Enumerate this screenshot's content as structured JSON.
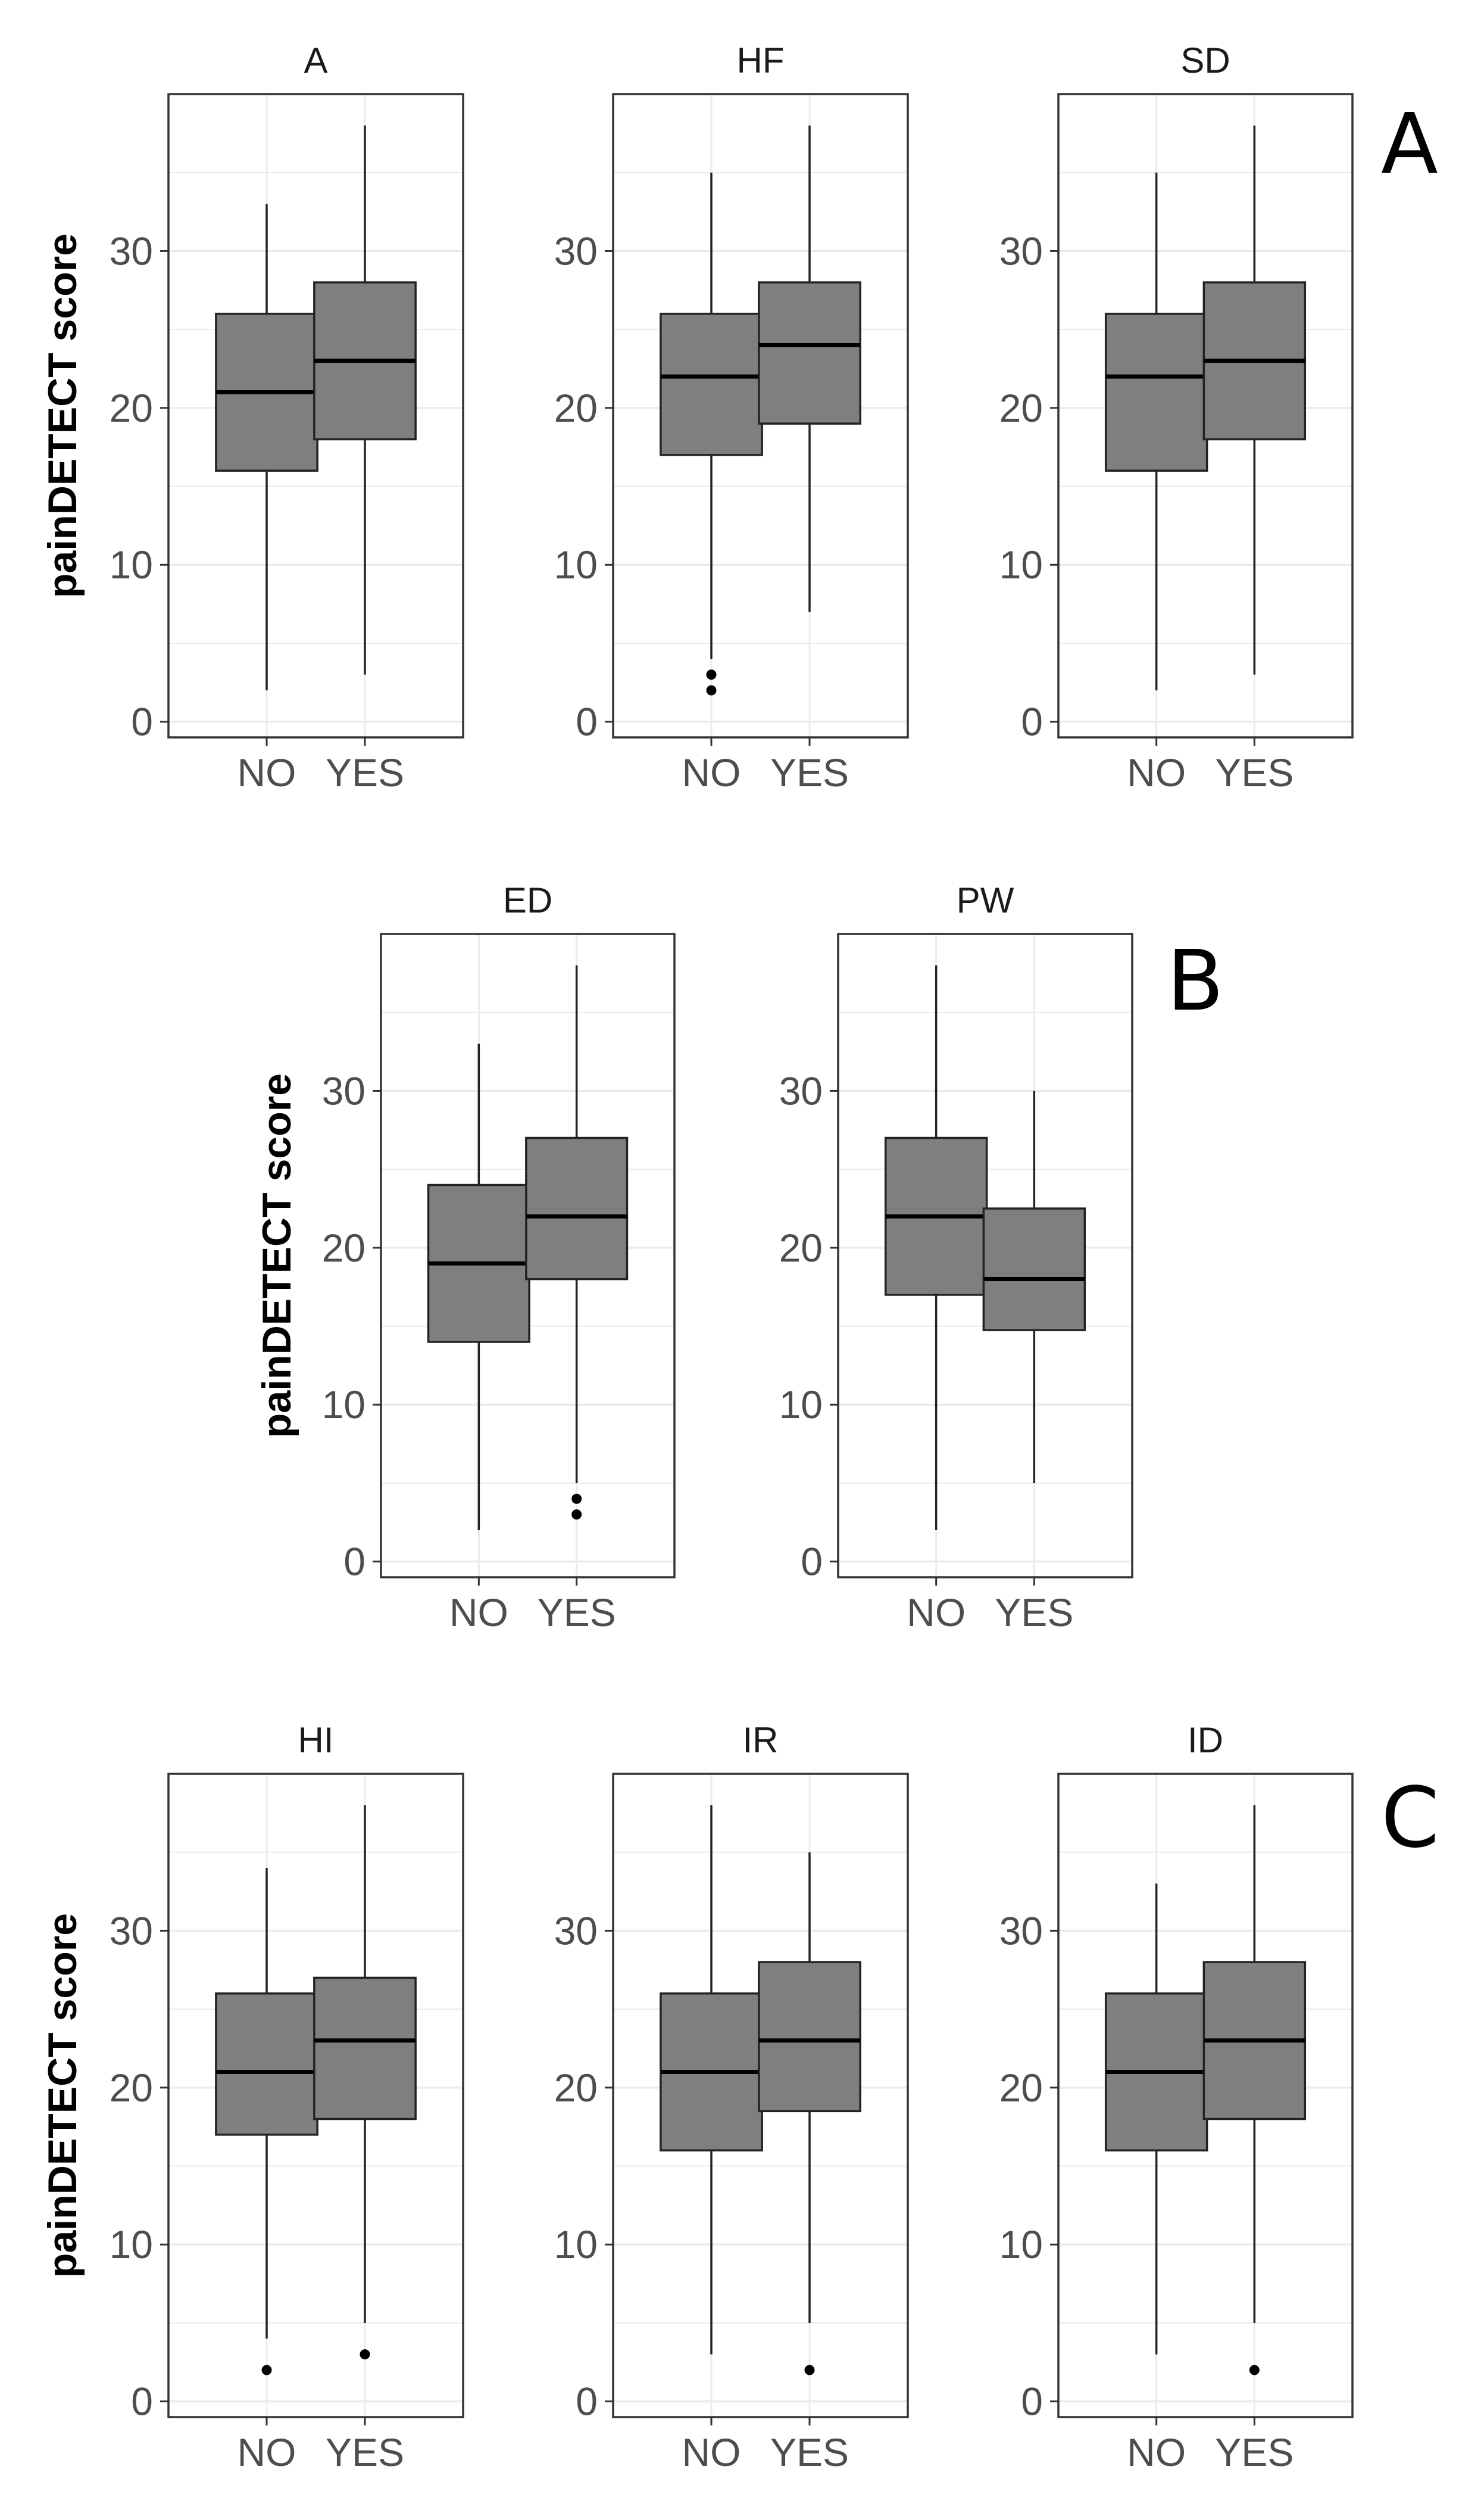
{
  "colors": {
    "box_fill": "#7f7f7f",
    "grid": "#ebebeb",
    "border": "#333333"
  },
  "panel_labels": [
    "A",
    "B",
    "C"
  ],
  "chart_data": [
    {
      "panel": "A",
      "type": "boxplot",
      "ylabel": "painDETECT score",
      "ylim": [
        -1,
        40
      ],
      "yticks": [
        0,
        10,
        20,
        30
      ],
      "categories": [
        "NO",
        "YES"
      ],
      "facets": [
        {
          "title": "A",
          "boxes": [
            {
              "category": "NO",
              "min": 2,
              "q1": 16,
              "median": 21,
              "q3": 26,
              "max": 33,
              "outliers": []
            },
            {
              "category": "YES",
              "min": 3,
              "q1": 18,
              "median": 23,
              "q3": 28,
              "max": 38,
              "outliers": []
            }
          ]
        },
        {
          "title": "HF",
          "boxes": [
            {
              "category": "NO",
              "min": 4,
              "q1": 17,
              "median": 22,
              "q3": 26,
              "max": 35,
              "outliers": [
                2,
                3
              ]
            },
            {
              "category": "YES",
              "min": 7,
              "q1": 19,
              "median": 24,
              "q3": 28,
              "max": 38,
              "outliers": []
            }
          ]
        },
        {
          "title": "SD",
          "boxes": [
            {
              "category": "NO",
              "min": 2,
              "q1": 16,
              "median": 22,
              "q3": 26,
              "max": 35,
              "outliers": []
            },
            {
              "category": "YES",
              "min": 3,
              "q1": 18,
              "median": 23,
              "q3": 28,
              "max": 38,
              "outliers": []
            }
          ]
        }
      ]
    },
    {
      "panel": "B",
      "type": "boxplot",
      "ylabel": "painDETECT score",
      "ylim": [
        -1,
        40
      ],
      "yticks": [
        0,
        10,
        20,
        30
      ],
      "categories": [
        "NO",
        "YES"
      ],
      "facets": [
        {
          "title": "ED",
          "boxes": [
            {
              "category": "NO",
              "min": 2,
              "q1": 14,
              "median": 19,
              "q3": 24,
              "max": 33,
              "outliers": []
            },
            {
              "category": "YES",
              "min": 5,
              "q1": 18,
              "median": 22,
              "q3": 27,
              "max": 38,
              "outliers": [
                3,
                4
              ]
            }
          ]
        },
        {
          "title": "PW",
          "boxes": [
            {
              "category": "NO",
              "min": 2,
              "q1": 17,
              "median": 22,
              "q3": 27,
              "max": 38,
              "outliers": []
            },
            {
              "category": "YES",
              "min": 5,
              "q1": 14.75,
              "median": 18,
              "q3": 22.5,
              "max": 30,
              "outliers": []
            }
          ]
        }
      ]
    },
    {
      "panel": "C",
      "type": "boxplot",
      "ylabel": "painDETECT score",
      "ylim": [
        -1,
        40
      ],
      "yticks": [
        0,
        10,
        20,
        30
      ],
      "categories": [
        "NO",
        "YES"
      ],
      "facets": [
        {
          "title": "HI",
          "boxes": [
            {
              "category": "NO",
              "min": 4,
              "q1": 17,
              "median": 21,
              "q3": 26,
              "max": 34,
              "outliers": [
                2
              ]
            },
            {
              "category": "YES",
              "min": 5,
              "q1": 18,
              "median": 23,
              "q3": 27,
              "max": 38,
              "outliers": [
                3
              ]
            }
          ]
        },
        {
          "title": "IR",
          "boxes": [
            {
              "category": "NO",
              "min": 3,
              "q1": 16,
              "median": 21,
              "q3": 26,
              "max": 38,
              "outliers": []
            },
            {
              "category": "YES",
              "min": 5,
              "q1": 18.5,
              "median": 23,
              "q3": 28,
              "max": 35,
              "outliers": [
                2
              ]
            }
          ]
        },
        {
          "title": "ID",
          "boxes": [
            {
              "category": "NO",
              "min": 3,
              "q1": 16,
              "median": 21,
              "q3": 26,
              "max": 33,
              "outliers": []
            },
            {
              "category": "YES",
              "min": 5,
              "q1": 18,
              "median": 23,
              "q3": 28,
              "max": 38,
              "outliers": [
                2
              ]
            }
          ]
        }
      ]
    }
  ]
}
